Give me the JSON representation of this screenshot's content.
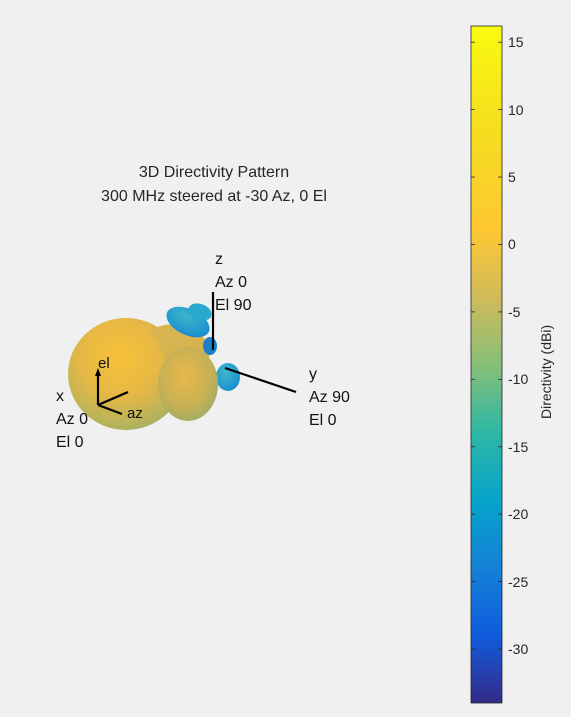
{
  "chart_data": {
    "type": "3d-surface",
    "title": "3D Directivity Pattern",
    "subtitle": "300 MHz steered at -30 Az, 0 El",
    "axes": {
      "x": {
        "name": "x",
        "az": "Az 0",
        "el": "El 0"
      },
      "y": {
        "name": "y",
        "az": "Az 90",
        "el": "El 0"
      },
      "z": {
        "name": "z",
        "az": "Az 0",
        "el": "El 90"
      }
    },
    "local_axes": {
      "elevation": "el",
      "azimuth": "az"
    },
    "colorbar": {
      "label": "Directivity (dBi)",
      "min": -34,
      "max": 16.2,
      "ticks": [
        15,
        10,
        5,
        0,
        -5,
        -10,
        -15,
        -20,
        -25,
        -30
      ],
      "colormap": "parula"
    },
    "steering": {
      "frequency_mhz": 300,
      "azimuth_deg": -30,
      "elevation_deg": 0
    }
  }
}
